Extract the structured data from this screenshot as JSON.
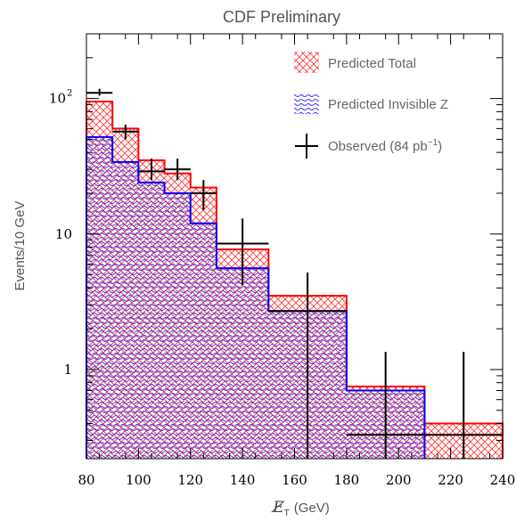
{
  "chart_data": {
    "type": "area",
    "title": "CDF Preliminary",
    "xlabel": "E̸T (GeV)",
    "xlabel_main": "E̸",
    "xlabel_sub": "T",
    "xlabel_unit": "(GeV)",
    "ylabel": "Events/10 GeV",
    "xlim": [
      80,
      240
    ],
    "ylim": [
      0.22,
      300
    ],
    "yscale": "log",
    "grid": false,
    "legend_position": "top-right",
    "x_ticks": [
      "80",
      "100",
      "120",
      "140",
      "160",
      "180",
      "200",
      "220",
      "240"
    ],
    "y_ticks": [
      {
        "value": 1,
        "label": "1"
      },
      {
        "value": 10,
        "label": "10"
      },
      {
        "value": 100,
        "label": "10",
        "exponent": "2"
      }
    ],
    "bin_edges": [
      80,
      90,
      100,
      110,
      120,
      130,
      150,
      180,
      210,
      240
    ],
    "series": [
      {
        "name": "Predicted Total",
        "color": "#ff0000",
        "style": "cross-hatch",
        "values": [
          95,
          60,
          35,
          28,
          22,
          7.7,
          3.5,
          0.75,
          0.4
        ]
      },
      {
        "name": "Predicted Invisible Z",
        "color": "#0000ff",
        "style": "wavy-hatch",
        "values": [
          52,
          34,
          24,
          20,
          12,
          5.6,
          2.7,
          0.7,
          null
        ]
      },
      {
        "name": "Observed",
        "name_prefix": "Observed (84 pb",
        "name_exponent": "−1",
        "name_suffix": ")",
        "color": "#000000",
        "style": "crosses",
        "points": [
          {
            "x": 85,
            "y": 110,
            "xerr": 5,
            "ylow": 105,
            "yhigh": 118
          },
          {
            "x": 95,
            "y": 57,
            "xerr": 5,
            "ylow": 50,
            "yhigh": 64
          },
          {
            "x": 105,
            "y": 29,
            "xerr": 5,
            "ylow": 25,
            "yhigh": 36
          },
          {
            "x": 115,
            "y": 30,
            "xerr": 5,
            "ylow": 25,
            "yhigh": 36
          },
          {
            "x": 125,
            "y": 20,
            "xerr": 5,
            "ylow": 15,
            "yhigh": 25
          },
          {
            "x": 140,
            "y": 8.5,
            "xerr": 10,
            "ylow": 4.2,
            "yhigh": 13
          },
          {
            "x": 165,
            "y": 2.7,
            "xerr": 15,
            "ylow": 0.22,
            "yhigh": 5.2
          },
          {
            "x": 195,
            "y": 0.33,
            "xerr": 15,
            "ylow": 0.22,
            "yhigh": 1.35
          },
          {
            "x": 225,
            "y": 0.33,
            "xerr": 15,
            "ylow": 0.22,
            "yhigh": 1.35
          }
        ]
      }
    ]
  }
}
